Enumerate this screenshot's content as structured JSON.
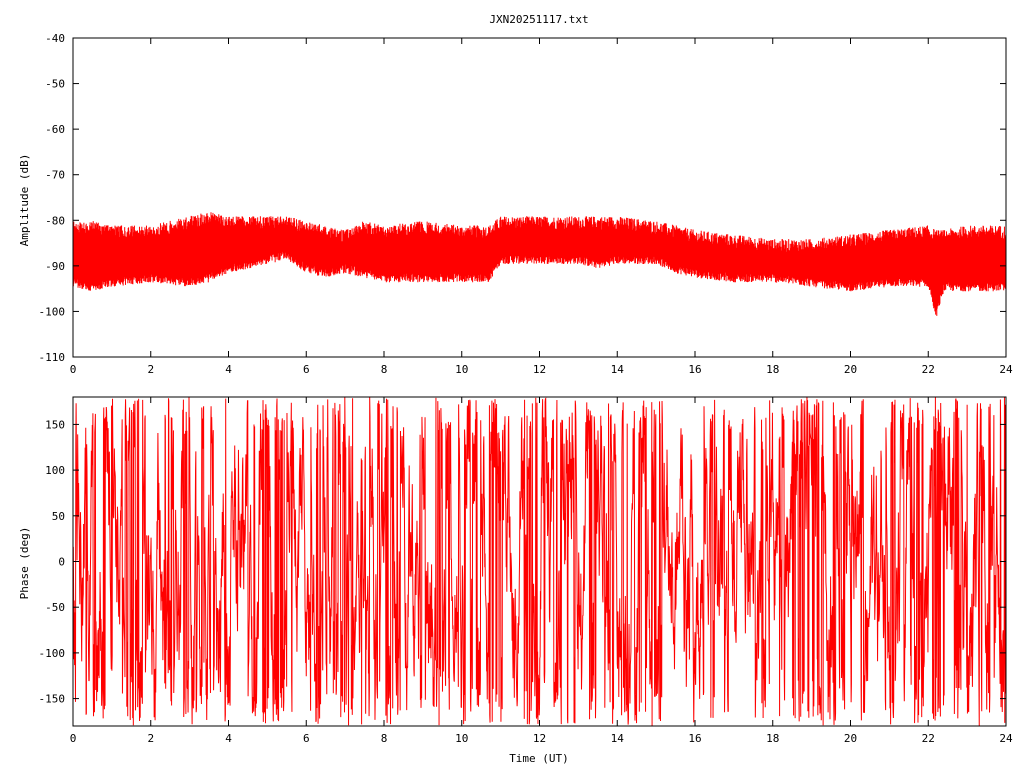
{
  "title": "JXN20251117.txt",
  "chart_data": [
    {
      "type": "line",
      "ylabel": "Amplitude (dB)",
      "xlabel": "",
      "xlim": [
        0,
        24
      ],
      "ylim": [
        -110,
        -40
      ],
      "xticks": [
        0,
        2,
        4,
        6,
        8,
        10,
        12,
        14,
        16,
        18,
        20,
        22,
        24
      ],
      "yticks": [
        -110,
        -100,
        -90,
        -80,
        -70,
        -60,
        -50,
        -40
      ],
      "color": "#ff0000",
      "grid": false,
      "envelope": {
        "x": [
          0,
          0.5,
          1,
          2,
          3,
          3.5,
          4,
          4.5,
          5,
          5.5,
          6,
          6.5,
          7,
          7.5,
          8,
          9,
          10,
          10.7,
          11,
          12,
          13,
          13.5,
          14,
          15,
          15.5,
          16,
          17,
          18,
          19,
          20,
          21,
          22,
          22.2,
          22.4,
          23,
          24
        ],
        "upper": [
          -81,
          -81,
          -82,
          -82,
          -80,
          -79,
          -80,
          -80,
          -80,
          -80,
          -81,
          -82,
          -83,
          -81,
          -82,
          -81,
          -82,
          -82,
          -80,
          -80,
          -80,
          -80,
          -80,
          -81,
          -82,
          -83,
          -84,
          -85,
          -85,
          -84,
          -83,
          -82,
          -83,
          -83,
          -82,
          -82
        ],
        "lower": [
          -94,
          -95,
          -94,
          -93,
          -94,
          -93,
          -91,
          -90,
          -89,
          -88,
          -91,
          -92,
          -91,
          -92,
          -93,
          -93,
          -93,
          -93,
          -89,
          -89,
          -89,
          -90,
          -89,
          -89,
          -91,
          -92,
          -93,
          -93,
          -94,
          -95,
          -94,
          -94,
          -101,
          -95,
          -95,
          -95
        ]
      }
    },
    {
      "type": "line",
      "ylabel": "Phase (deg)",
      "xlabel": "Time (UT)",
      "xlim": [
        0,
        24
      ],
      "ylim": [
        -180,
        180
      ],
      "xticks": [
        0,
        2,
        4,
        6,
        8,
        10,
        12,
        14,
        16,
        18,
        20,
        22,
        24
      ],
      "yticks": [
        -150,
        -100,
        -50,
        0,
        50,
        100,
        150
      ],
      "color": "#ff0000",
      "grid": false
    }
  ]
}
